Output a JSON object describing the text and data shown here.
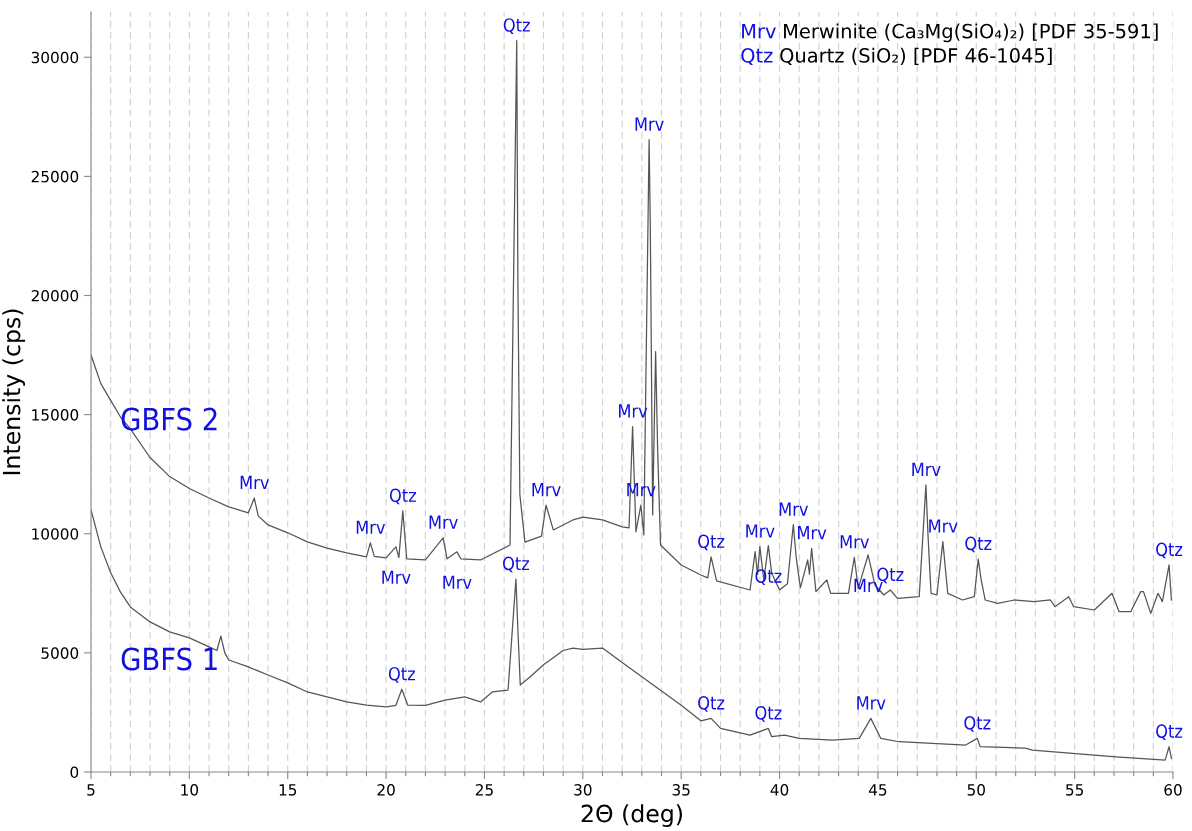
{
  "chart_data": {
    "type": "line",
    "xlabel": "2Θ (deg)",
    "ylabel": "Intensity (cps)",
    "xlim": [
      5,
      60
    ],
    "ylim": [
      0,
      31900
    ],
    "xticks": [
      5,
      {
        "value": 6,
        "label": null
      },
      {
        "value": 7,
        "label": null
      },
      {
        "value": 8,
        "label": null
      },
      {
        "value": 9,
        "label": null
      },
      10,
      {
        "value": 11,
        "label": null
      },
      {
        "value": 12,
        "label": null
      },
      {
        "value": 13,
        "label": null
      },
      {
        "value": 14,
        "label": null
      },
      15,
      {
        "value": 16,
        "label": null
      },
      {
        "value": 17,
        "label": null
      },
      {
        "value": 18,
        "label": null
      },
      {
        "value": 19,
        "label": null
      },
      20,
      {
        "value": 21,
        "label": null
      },
      {
        "value": 22,
        "label": null
      },
      {
        "value": 23,
        "label": null
      },
      {
        "value": 24,
        "label": null
      },
      25,
      {
        "value": 26,
        "label": null
      },
      {
        "value": 27,
        "label": null
      },
      {
        "value": 28,
        "label": null
      },
      {
        "value": 29,
        "label": null
      },
      30,
      {
        "value": 31,
        "label": null
      },
      {
        "value": 32,
        "label": null
      },
      {
        "value": 33,
        "label": null
      },
      {
        "value": 34,
        "label": null
      },
      35,
      {
        "value": 36,
        "label": null
      },
      {
        "value": 37,
        "label": null
      },
      {
        "value": 38,
        "label": null
      },
      {
        "value": 39,
        "label": null
      },
      40,
      {
        "value": 41,
        "label": null
      },
      {
        "value": 42,
        "label": null
      },
      {
        "value": 43,
        "label": null
      },
      {
        "value": 44,
        "label": null
      },
      45,
      {
        "value": 46,
        "label": null
      },
      {
        "value": 47,
        "label": null
      },
      {
        "value": 48,
        "label": null
      },
      {
        "value": 49,
        "label": null
      },
      50,
      {
        "value": 51,
        "label": null
      },
      {
        "value": 52,
        "label": null
      },
      {
        "value": 53,
        "label": null
      },
      {
        "value": 54,
        "label": null
      },
      55,
      {
        "value": 56,
        "label": null
      },
      {
        "value": 57,
        "label": null
      },
      {
        "value": 58,
        "label": null
      },
      {
        "value": 59,
        "label": null
      },
      60
    ],
    "yticks": [
      0,
      5000,
      10000,
      15000,
      20000,
      25000,
      30000
    ],
    "grid": "x",
    "legend": false,
    "marker": "none",
    "line_style": "solid",
    "series": [
      {
        "name": "GBFS 1",
        "color": "#555555",
        "x": [
          5,
          5.5,
          6,
          6.5,
          7,
          8,
          9,
          10,
          11,
          11.4,
          11.6,
          11.8,
          12,
          13,
          14,
          15,
          16,
          17,
          18,
          19,
          20,
          20.5,
          20.8,
          21.1,
          22,
          23,
          24,
          24.8,
          25.4,
          26.2,
          26.6,
          26.7,
          26.82,
          27.3,
          28,
          28.5,
          29,
          29.5,
          30,
          31,
          31.5,
          32,
          33,
          34,
          35,
          36,
          36.52,
          37,
          38.5,
          39.43,
          39.6,
          40.26,
          41,
          42.7,
          44.05,
          44.64,
          45.15,
          46.07,
          47.77,
          49.46,
          50.05,
          50.2,
          52.5,
          52.85,
          54.9,
          57.1,
          59.6,
          59.8,
          59.92
        ],
        "values": [
          11000,
          9450,
          8360,
          7550,
          6930,
          6300,
          5880,
          5630,
          5250,
          5100,
          5700,
          5000,
          4700,
          4410,
          4070,
          3740,
          3360,
          3150,
          2940,
          2810,
          2730,
          2800,
          3470,
          2810,
          2800,
          3020,
          3150,
          2940,
          3360,
          3440,
          8100,
          5960,
          3650,
          3980,
          4500,
          4800,
          5100,
          5200,
          5150,
          5200,
          4900,
          4600,
          4000,
          3400,
          2800,
          2150,
          2250,
          1830,
          1550,
          1830,
          1480,
          1550,
          1410,
          1340,
          1410,
          2250,
          1410,
          1270,
          1200,
          1130,
          1410,
          1060,
          1000,
          920,
          780,
          640,
          500,
          1060,
          570
        ]
      },
      {
        "name": "GBFS 2",
        "color": "#555555",
        "x": [
          5,
          5.5,
          6,
          6.5,
          7,
          8,
          9,
          10,
          11,
          12,
          13,
          13.3,
          13.5,
          14,
          15,
          16,
          17,
          18,
          19,
          19.2,
          19.4,
          20,
          20.5,
          20.65,
          20.85,
          21.05,
          22,
          22.9,
          23.1,
          23.6,
          23.8,
          24.8,
          26.3,
          26.64,
          26.7,
          26.8,
          27.06,
          27.9,
          28.13,
          28.5,
          29.5,
          30,
          31,
          32,
          32.35,
          32.53,
          32.7,
          32.95,
          33.1,
          33.37,
          33.43,
          33.55,
          33.7,
          33.8,
          33.95,
          35,
          36,
          36.35,
          36.52,
          36.8,
          38.5,
          38.76,
          38.88,
          39.0,
          39.2,
          39.43,
          39.6,
          40.0,
          40.4,
          40.7,
          40.85,
          41.06,
          41.43,
          41.52,
          41.63,
          41.85,
          42.4,
          42.6,
          43.5,
          43.8,
          44.0,
          44.5,
          44.85,
          45.3,
          45.63,
          46.0,
          47.1,
          47.44,
          47.55,
          47.7,
          48.0,
          48.3,
          48.55,
          49.3,
          49.9,
          50.1,
          50.25,
          50.45,
          51.1,
          51.93,
          52.95,
          53.77,
          54.0,
          54.7,
          54.95,
          56.0,
          56.9,
          57.26,
          57.85,
          58.36,
          58.5,
          58.87,
          59.24,
          59.46,
          59.8,
          59.92
        ],
        "values": [
          17500,
          16300,
          15600,
          14900,
          14400,
          13200,
          12400,
          11900,
          11500,
          11130,
          10880,
          11500,
          10750,
          10370,
          10040,
          9660,
          9400,
          9200,
          9030,
          9620,
          9050,
          8990,
          9450,
          9000,
          10960,
          8950,
          8900,
          9830,
          8950,
          9240,
          8950,
          8900,
          9530,
          30700,
          20500,
          11630,
          9650,
          9900,
          11200,
          10160,
          10580,
          10700,
          10580,
          10290,
          10250,
          14500,
          10080,
          11200,
          9950,
          26540,
          22970,
          10790,
          17640,
          13650,
          9530,
          8690,
          8270,
          8150,
          9030,
          8020,
          7640,
          9250,
          8290,
          9460,
          8060,
          9500,
          8340,
          7640,
          7900,
          10380,
          8980,
          7730,
          8900,
          8300,
          9390,
          7570,
          8060,
          7500,
          7500,
          9010,
          7710,
          9110,
          7850,
          7430,
          7640,
          7290,
          7360,
          12050,
          9880,
          7500,
          7430,
          9670,
          7500,
          7220,
          7360,
          8940,
          8060,
          7220,
          7080,
          7220,
          7150,
          7220,
          6940,
          7360,
          6940,
          6800,
          7500,
          6730,
          6730,
          7570,
          7570,
          6660,
          7500,
          7150,
          8690,
          7220
        ]
      }
    ],
    "annotations": [
      "Mrv Merwinite (Ca₃Mg(SiO₄)₂) [PDF 35-591]",
      "Qtz Quartz (SiO₂) [PDF 46-1045]",
      {
        "text": "Mrv",
        "x": 13.3,
        "y": 11500
      },
      {
        "text": "Mrv",
        "x": 19.2,
        "y": 9620
      },
      {
        "text": "Qtz",
        "x": 20.85,
        "y": 10960
      },
      {
        "text": "Mrv",
        "x": 20.5,
        "y": 9450
      },
      {
        "text": "Mrv",
        "x": 22.9,
        "y": 9830
      },
      {
        "text": "Mrv",
        "x": 23.6,
        "y": 9240
      },
      {
        "text": "Qtz",
        "x": 26.64,
        "y": 30700
      },
      {
        "text": "Mrv",
        "x": 28.13,
        "y": 11200
      },
      {
        "text": "Mrv",
        "x": 33.37,
        "y": 26540
      },
      {
        "text": "Mrv",
        "x": 32.53,
        "y": 14500
      },
      {
        "text": "Mrv",
        "x": 32.95,
        "y": 11200
      },
      {
        "text": "Qtz",
        "x": 36.52,
        "y": 9030
      },
      {
        "text": "Mrv",
        "x": 39.0,
        "y": 9460
      },
      {
        "text": "Qtz",
        "x": 39.43,
        "y": 9500
      },
      {
        "text": "Mrv",
        "x": 40.7,
        "y": 10380
      },
      {
        "text": "Mrv",
        "x": 41.63,
        "y": 9390
      },
      {
        "text": "Mrv",
        "x": 43.8,
        "y": 9010
      },
      {
        "text": "Qtz",
        "x": 45.63,
        "y": 7640
      },
      {
        "text": "Mrv",
        "x": 44.5,
        "y": 9110
      },
      {
        "text": "Mrv",
        "x": 47.44,
        "y": 12050
      },
      {
        "text": "Mrv",
        "x": 48.3,
        "y": 9670
      },
      {
        "text": "Qtz",
        "x": 50.1,
        "y": 8940
      },
      {
        "text": "Qtz",
        "x": 59.8,
        "y": 8690
      },
      {
        "text": "Qtz",
        "x": 20.8,
        "y": 3470
      },
      {
        "text": "Qtz",
        "x": 26.6,
        "y": 8100
      },
      {
        "text": "Qtz",
        "x": 36.52,
        "y": 2250
      },
      {
        "text": "Qtz",
        "x": 39.43,
        "y": 1830
      },
      {
        "text": "Mrv",
        "x": 44.64,
        "y": 2250
      },
      {
        "text": "Qtz",
        "x": 50.05,
        "y": 1410
      },
      {
        "text": "Qtz",
        "x": 59.8,
        "y": 1060
      }
    ]
  }
}
